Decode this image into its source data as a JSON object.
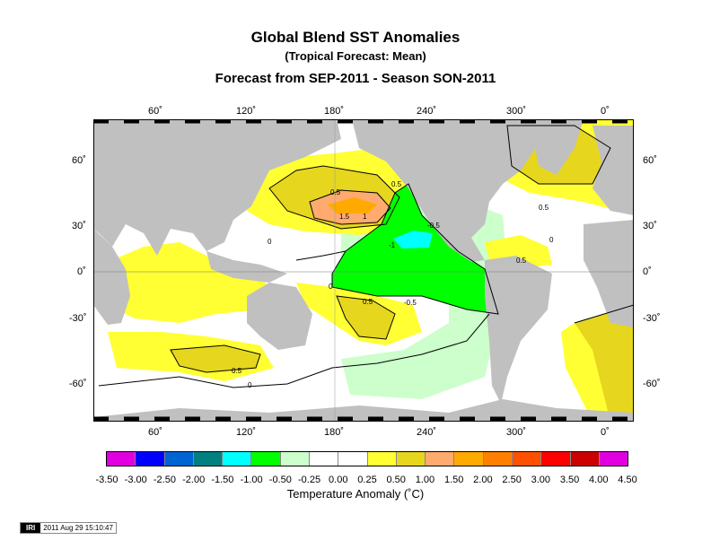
{
  "title": "Global Blend SST Anomalies",
  "subtitle": "(Tropical Forecast: Mean)",
  "forecast_line": "Forecast from SEP-2011 - Season SON-2011",
  "lon_labels": [
    "60˚",
    "120˚",
    "180˚",
    "240˚",
    "300˚",
    "0˚"
  ],
  "lat_labels_left": [
    "60˚",
    "30˚",
    "0˚",
    "-30˚",
    "-60˚"
  ],
  "lat_labels_right": [
    "60˚",
    "30˚",
    "0˚",
    "-30˚",
    "-60˚"
  ],
  "contour_labels": [
    "0.5",
    "1.5",
    "1",
    "0.5",
    "0",
    "-0.5",
    "-1",
    "-0.5",
    "0.5",
    "0",
    "0.5",
    "0.5",
    "0",
    "0.5",
    "0"
  ],
  "colorbar": {
    "title": "Temperature Anomaly (˚C)",
    "ticks": [
      "-3.50",
      "-3.00",
      "-2.50",
      "-2.00",
      "-1.50",
      "-1.00",
      "-0.50",
      "-0.25",
      "0.00",
      "0.25",
      "0.50",
      "1.00",
      "1.50",
      "2.00",
      "2.50",
      "3.00",
      "3.50",
      "4.00",
      "4.50"
    ],
    "colors": [
      "#e000e0",
      "#0000ff",
      "#0064d2",
      "#008080",
      "#00ffff",
      "#00ff00",
      "#ccffcc",
      "#ffffff",
      "#ffffff",
      "#ffff33",
      "#e6d61e",
      "#ffaa6e",
      "#ffaa00",
      "#ff8000",
      "#ff5000",
      "#ff0000",
      "#cc0000",
      "#e000e0"
    ]
  },
  "land_color": "#c0c0c0",
  "stamp": {
    "logo": "IRI",
    "timestamp": "2011 Aug 29 15:10:47"
  }
}
